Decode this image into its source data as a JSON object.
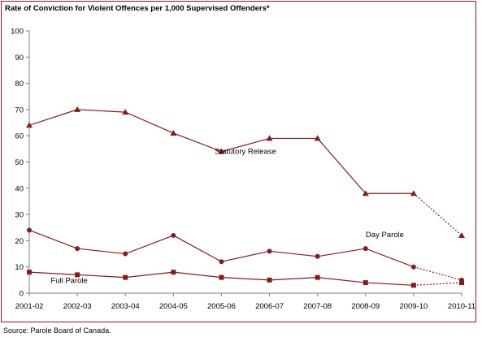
{
  "title": "Rate of Conviction for Violent Offences per 1,000 Supervised Offenders*",
  "source": "Source:  Parole Board of Canada.",
  "chart_data": {
    "type": "line",
    "title": "Rate of Conviction for Violent Offences per 1,000 Supervised Offenders*",
    "xlabel": "",
    "ylabel": "",
    "categories": [
      "2001-02",
      "2002-03",
      "2003-04",
      "2004-05",
      "2005-06",
      "2006-07",
      "2007-08",
      "2008-09",
      "2009-10",
      "2010-11"
    ],
    "ylim": [
      0,
      100
    ],
    "yticks": [
      0,
      10,
      20,
      30,
      40,
      50,
      60,
      70,
      80,
      90,
      100
    ],
    "grid": false,
    "legend": "none",
    "series": [
      {
        "name": "Statutory Release",
        "marker": "triangle",
        "color": "#8b1a1a",
        "values": [
          64,
          70,
          69,
          61,
          54,
          59,
          59,
          38,
          38,
          22
        ],
        "dotted_last_segment": true
      },
      {
        "name": "Day Parole",
        "marker": "circle",
        "color": "#8b1a1a",
        "values": [
          24,
          17,
          15,
          22,
          12,
          16,
          14,
          17,
          10,
          5
        ],
        "dotted_last_segment": true
      },
      {
        "name": "Full Parole",
        "marker": "square",
        "color": "#8b1a1a",
        "values": [
          8,
          7,
          6,
          8,
          6,
          5,
          6,
          4,
          3,
          4
        ],
        "dotted_last_segment": true
      }
    ]
  }
}
